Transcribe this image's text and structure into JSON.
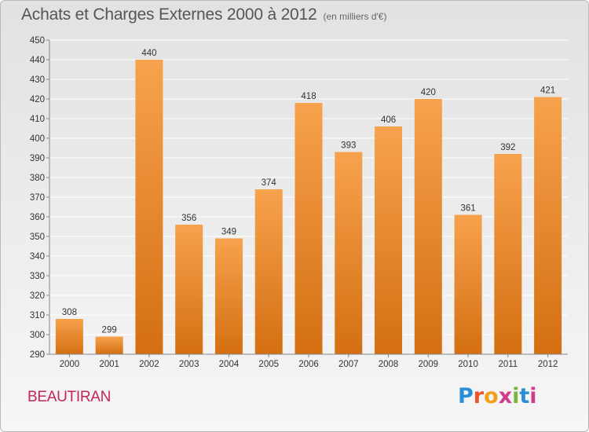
{
  "header": {
    "title": "Achats et Charges Externes 2000 à 2012",
    "subtitle": "(en milliers d'€)"
  },
  "footer": {
    "town": "BEAUTIRAN",
    "logo_text": "Proxiti",
    "logo_colors": [
      "#2a8fd6",
      "#e8562a",
      "#f0a019",
      "#d13c8c",
      "#7ab63a",
      "#2a8fd6",
      "#d13c8c"
    ]
  },
  "colors": {
    "bar_top": "#f7a24d",
    "bar_bottom": "#d46f12",
    "grid": "#ffffff",
    "axis": "#888888"
  },
  "chart_data": {
    "type": "bar",
    "title": "Achats et Charges Externes 2000 à 2012",
    "subtitle": "(en milliers d'€)",
    "categories": [
      "2000",
      "2001",
      "2002",
      "2003",
      "2004",
      "2005",
      "2006",
      "2007",
      "2008",
      "2009",
      "2010",
      "2011",
      "2012"
    ],
    "values": [
      308,
      299,
      440,
      356,
      349,
      374,
      418,
      393,
      406,
      420,
      361,
      392,
      421
    ],
    "xlabel": "",
    "ylabel": "",
    "ylim": [
      290,
      450
    ],
    "yticks": [
      290,
      300,
      310,
      320,
      330,
      340,
      350,
      360,
      370,
      380,
      390,
      400,
      410,
      420,
      430,
      440,
      450
    ],
    "grid": true,
    "legend": "none"
  }
}
